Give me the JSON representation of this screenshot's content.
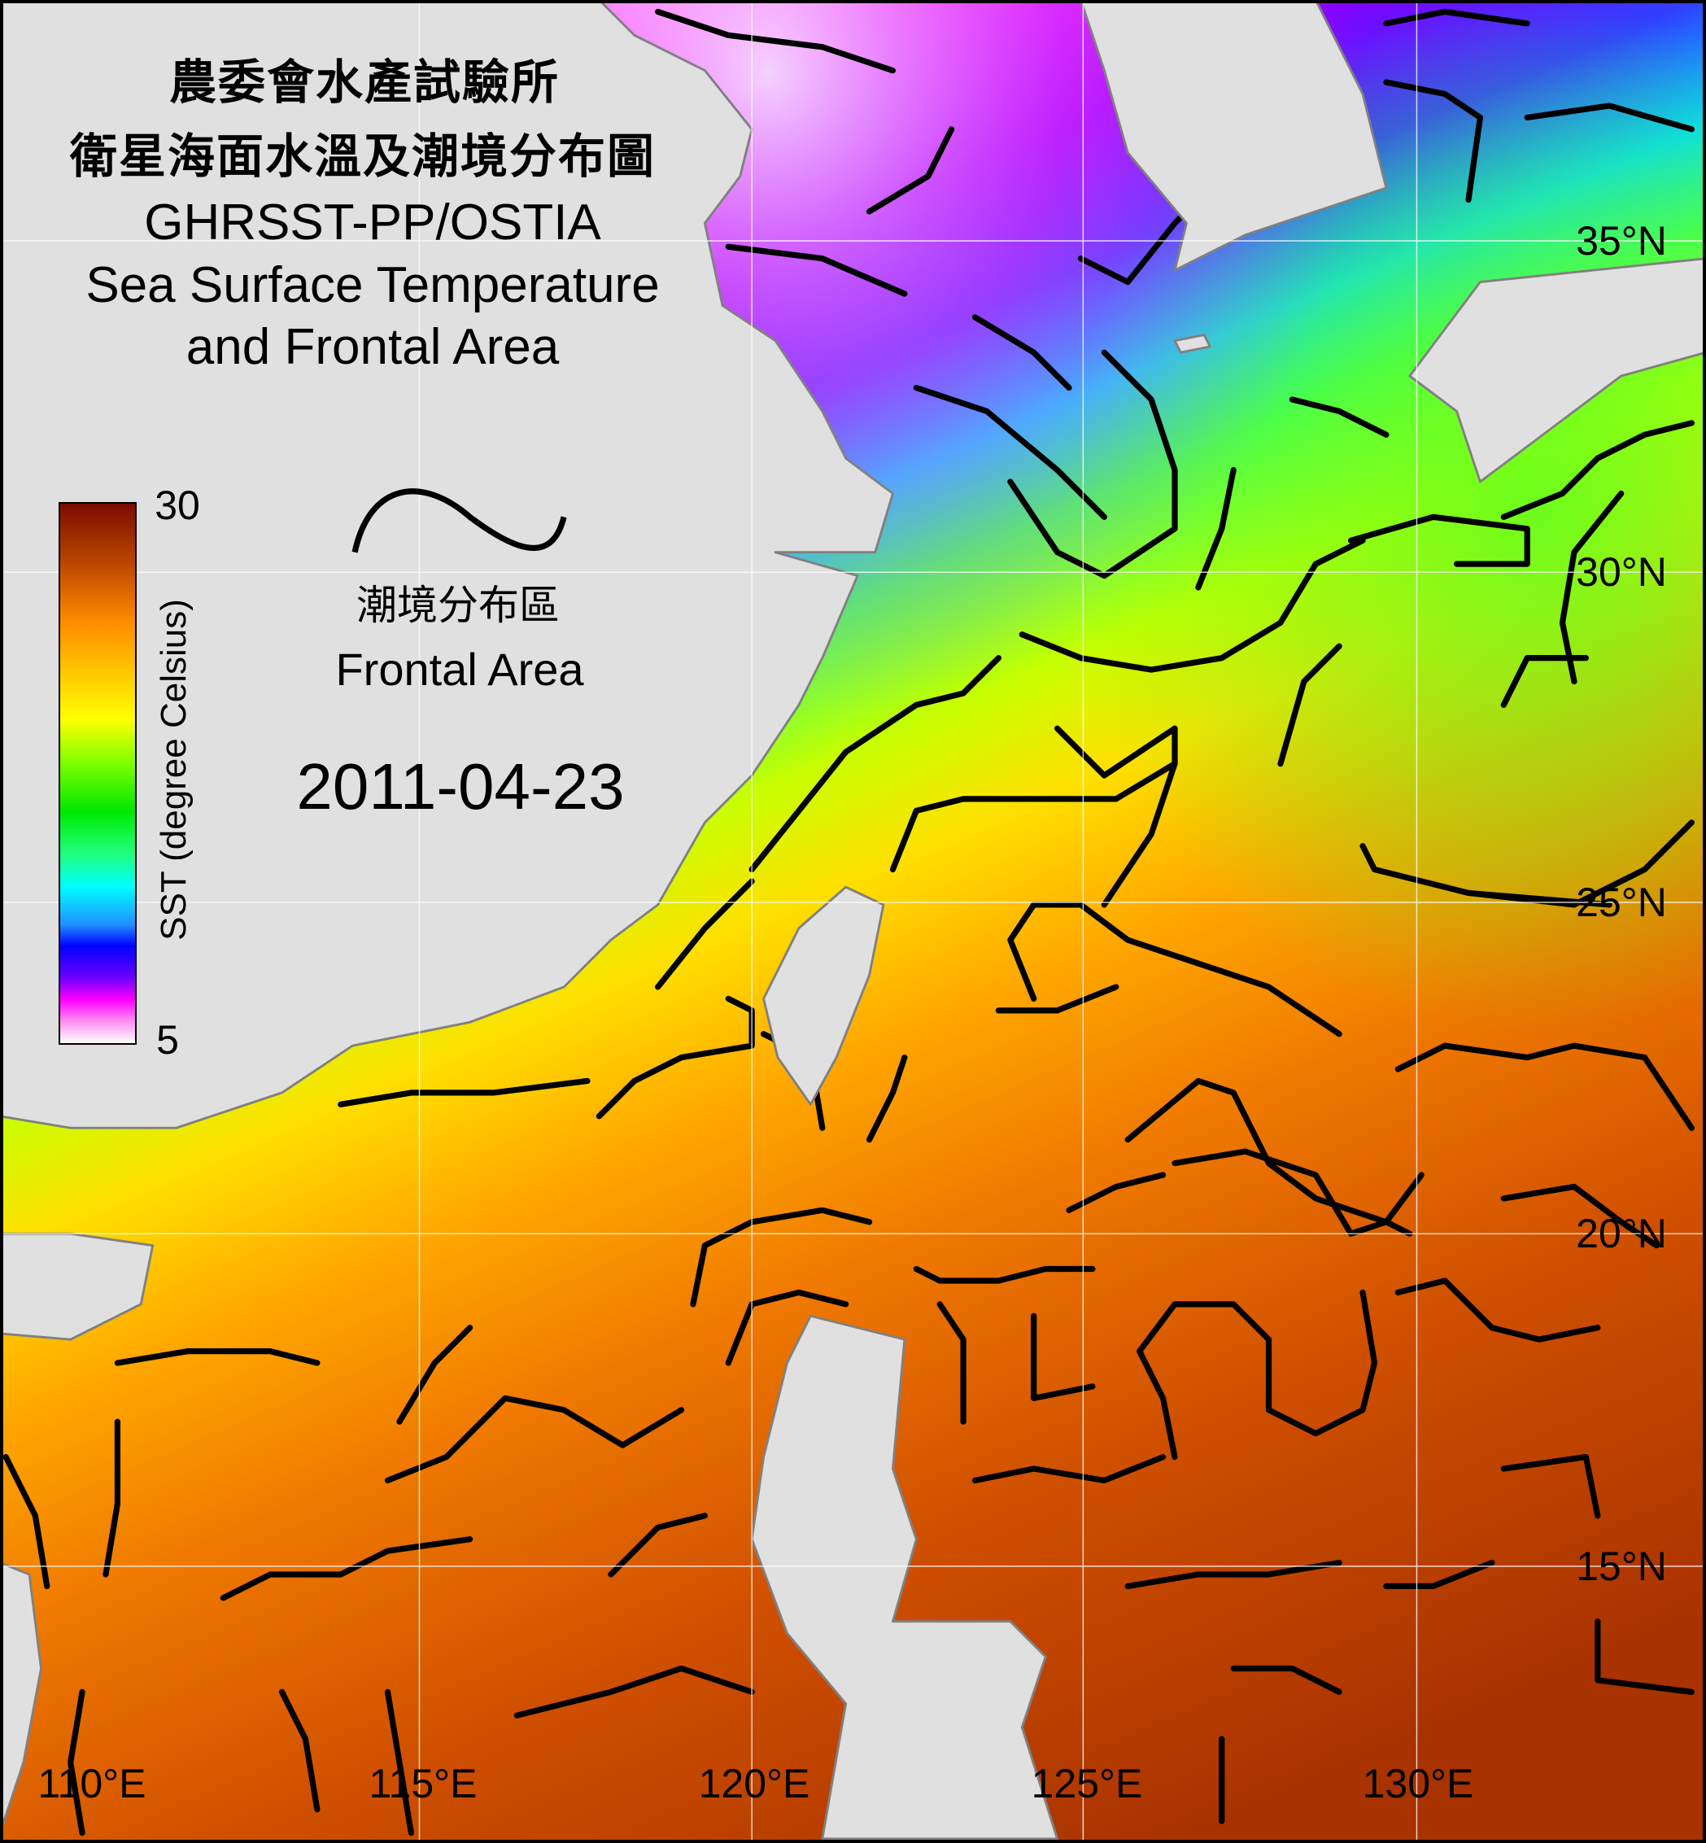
{
  "title": {
    "line1": "農委會水產試驗所",
    "line2": "衛星海面水溫及潮境分布圖",
    "line3": "GHRSST-PP/OSTIA",
    "line4": "Sea Surface Temperature",
    "line5": "and Frontal Area"
  },
  "colorbar": {
    "max_label": "30",
    "min_label": "5",
    "axis_label": "SST (degree Celsius)",
    "range": [
      5,
      30
    ],
    "colors": [
      "#ffffff",
      "#ff00ff",
      "#0000ff",
      "#00ffff",
      "#00e800",
      "#ffff00",
      "#ff8c00",
      "#7a0c00"
    ]
  },
  "legend": {
    "symbol": "black-curve-frontal-line",
    "label_zh": "潮境分布區",
    "label_en": "Frontal Area"
  },
  "date": "2011-04-23",
  "longitude_labels": [
    "110°E",
    "115°E",
    "120°E",
    "125°E",
    "130°E"
  ],
  "latitude_labels": [
    "35°N",
    "30°N",
    "25°N",
    "20°N",
    "15°N"
  ],
  "colors": {
    "land": "#e0e0e0",
    "coastline": "#808080",
    "front": "#000000",
    "grid": "#ffffff"
  }
}
